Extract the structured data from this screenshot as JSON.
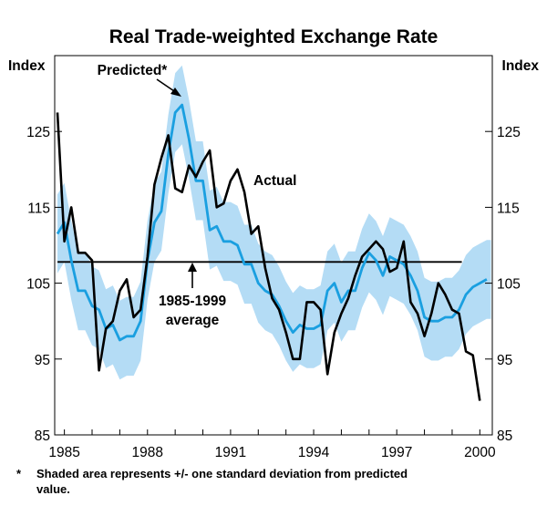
{
  "chart_data": {
    "type": "line",
    "title": "Real Trade-weighted Exchange Rate",
    "ylabel_left": "Index",
    "ylabel_right": "Index",
    "ylim": [
      85,
      135
    ],
    "y_ticks": [
      85,
      95,
      105,
      115,
      125
    ],
    "x_ticks": [
      "1985",
      "1988",
      "1991",
      "1994",
      "1997",
      "2000"
    ],
    "x_tick_values": [
      1985,
      1988,
      1991,
      1994,
      1997,
      2000
    ],
    "xlim": [
      1984.65,
      2000.45
    ],
    "series": [
      {
        "name": "Actual",
        "color": "#000000",
        "points": [
          [
            1984.75,
            127.5
          ],
          [
            1985.0,
            110.5
          ],
          [
            1985.25,
            115.0
          ],
          [
            1985.5,
            109.0
          ],
          [
            1985.75,
            109.0
          ],
          [
            1986.0,
            108.0
          ],
          [
            1986.25,
            93.5
          ],
          [
            1986.5,
            99.0
          ],
          [
            1986.75,
            100.0
          ],
          [
            1987.0,
            104.0
          ],
          [
            1987.25,
            105.5
          ],
          [
            1987.5,
            100.5
          ],
          [
            1987.75,
            101.5
          ],
          [
            1988.0,
            108.5
          ],
          [
            1988.25,
            118.0
          ],
          [
            1988.5,
            121.5
          ],
          [
            1988.75,
            124.5
          ],
          [
            1989.0,
            117.5
          ],
          [
            1989.25,
            117.0
          ],
          [
            1989.5,
            120.5
          ],
          [
            1989.75,
            119.0
          ],
          [
            1990.0,
            121.0
          ],
          [
            1990.25,
            122.5
          ],
          [
            1990.5,
            115.0
          ],
          [
            1990.75,
            115.5
          ],
          [
            1991.0,
            118.5
          ],
          [
            1991.25,
            120.0
          ],
          [
            1991.5,
            117.0
          ],
          [
            1991.75,
            111.5
          ],
          [
            1992.0,
            112.5
          ],
          [
            1992.25,
            107.0
          ],
          [
            1992.5,
            103.0
          ],
          [
            1992.75,
            101.5
          ],
          [
            1993.0,
            98.5
          ],
          [
            1993.25,
            95.0
          ],
          [
            1993.5,
            95.0
          ],
          [
            1993.75,
            102.5
          ],
          [
            1994.0,
            102.5
          ],
          [
            1994.25,
            101.5
          ],
          [
            1994.5,
            93.0
          ],
          [
            1994.75,
            98.5
          ],
          [
            1995.0,
            101.0
          ],
          [
            1995.25,
            103.0
          ],
          [
            1995.5,
            106.0
          ],
          [
            1995.75,
            108.5
          ],
          [
            1996.0,
            109.5
          ],
          [
            1996.25,
            110.5
          ],
          [
            1996.5,
            109.5
          ],
          [
            1996.75,
            106.5
          ],
          [
            1997.0,
            107.0
          ],
          [
            1997.25,
            110.5
          ],
          [
            1997.5,
            102.5
          ],
          [
            1997.75,
            101.0
          ],
          [
            1998.0,
            98.0
          ],
          [
            1998.25,
            101.0
          ],
          [
            1998.5,
            105.0
          ],
          [
            1998.75,
            103.5
          ],
          [
            1999.0,
            101.5
          ],
          [
            1999.25,
            101.0
          ],
          [
            1999.5,
            96.0
          ],
          [
            1999.75,
            95.5
          ],
          [
            2000.0,
            89.5
          ]
        ]
      },
      {
        "name": "Predicted*",
        "color": "#1a9fe0",
        "points": [
          [
            1984.75,
            111.5
          ],
          [
            1985.0,
            113.0
          ],
          [
            1985.25,
            108.0
          ],
          [
            1985.5,
            104.0
          ],
          [
            1985.75,
            104.0
          ],
          [
            1986.0,
            102.0
          ],
          [
            1986.25,
            101.5
          ],
          [
            1986.5,
            99.0
          ],
          [
            1986.75,
            99.5
          ],
          [
            1987.0,
            97.5
          ],
          [
            1987.25,
            98.0
          ],
          [
            1987.5,
            98.0
          ],
          [
            1987.75,
            100.0
          ],
          [
            1988.0,
            108.0
          ],
          [
            1988.25,
            113.0
          ],
          [
            1988.5,
            114.5
          ],
          [
            1988.75,
            122.0
          ],
          [
            1989.0,
            127.5
          ],
          [
            1989.25,
            128.5
          ],
          [
            1989.5,
            124.0
          ],
          [
            1989.75,
            118.5
          ],
          [
            1990.0,
            118.5
          ],
          [
            1990.25,
            112.0
          ],
          [
            1990.5,
            112.5
          ],
          [
            1990.75,
            110.5
          ],
          [
            1991.0,
            110.5
          ],
          [
            1991.25,
            110.0
          ],
          [
            1991.5,
            107.5
          ],
          [
            1991.75,
            107.5
          ],
          [
            1992.0,
            105.0
          ],
          [
            1992.25,
            104.0
          ],
          [
            1992.5,
            103.5
          ],
          [
            1992.75,
            102.0
          ],
          [
            1993.0,
            100.0
          ],
          [
            1993.25,
            98.5
          ],
          [
            1993.5,
            99.5
          ],
          [
            1993.75,
            99.0
          ],
          [
            1994.0,
            99.0
          ],
          [
            1994.25,
            99.5
          ],
          [
            1994.5,
            104.0
          ],
          [
            1994.75,
            105.0
          ],
          [
            1995.0,
            102.5
          ],
          [
            1995.25,
            104.0
          ],
          [
            1995.5,
            104.0
          ],
          [
            1995.75,
            107.0
          ],
          [
            1996.0,
            109.0
          ],
          [
            1996.25,
            108.0
          ],
          [
            1996.5,
            106.0
          ],
          [
            1996.75,
            108.5
          ],
          [
            1997.0,
            108.0
          ],
          [
            1997.25,
            107.5
          ],
          [
            1997.5,
            106.0
          ],
          [
            1997.75,
            104.0
          ],
          [
            1998.0,
            100.5
          ],
          [
            1998.25,
            100.0
          ],
          [
            1998.5,
            100.0
          ],
          [
            1998.75,
            100.5
          ],
          [
            1999.0,
            100.5
          ],
          [
            1999.25,
            101.5
          ],
          [
            1999.5,
            103.5
          ],
          [
            1999.75,
            104.5
          ],
          [
            2000.0,
            105.0
          ],
          [
            2000.25,
            105.5
          ]
        ]
      }
    ],
    "band": {
      "name": "+/- one standard deviation from predicted value",
      "color": "#b4dcf5",
      "sd": 5.2,
      "x_end": 2000.4
    },
    "reference_line": {
      "label": "1985-1999 average",
      "value": 107.8,
      "x_start": 1984.75,
      "x_end": 1999.35
    },
    "annotations": {
      "actual": "Actual",
      "predicted": "Predicted*",
      "average_line1": "1985-1999",
      "average_line2": "average"
    }
  },
  "footnote": {
    "marker": "*",
    "text": "Shaded area represents +/- one standard deviation from predicted value."
  }
}
